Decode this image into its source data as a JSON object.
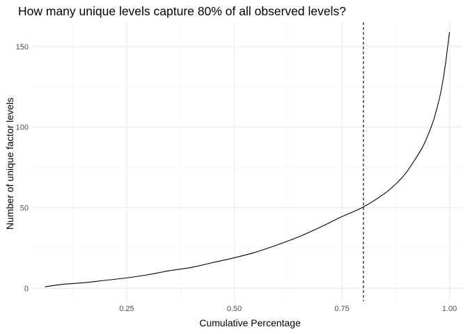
{
  "chart_data": {
    "type": "line",
    "title": "How many unique levels capture 80% of all observed levels?",
    "xlabel": "Cumulative Percentage",
    "ylabel": "Number of unique factor levels",
    "xlim": [
      0.03,
      1.03
    ],
    "ylim": [
      -8,
      165
    ],
    "x_ticks": [
      0.25,
      0.5,
      0.75,
      1.0
    ],
    "x_tick_labels": [
      "0.25",
      "0.50",
      "0.75",
      "1.00"
    ],
    "y_ticks": [
      0,
      50,
      100,
      150
    ],
    "y_tick_labels": [
      "0",
      "50",
      "100",
      "150"
    ],
    "grid": true,
    "reference_line": {
      "x": 0.8,
      "style": "dashed"
    },
    "series": [
      {
        "x": [
          0.06,
          0.1,
          0.15,
          0.2,
          0.25,
          0.3,
          0.35,
          0.4,
          0.45,
          0.5,
          0.55,
          0.6,
          0.65,
          0.7,
          0.75,
          0.8,
          0.85,
          0.88,
          0.9,
          0.92,
          0.94,
          0.96,
          0.97,
          0.98,
          0.99,
          1.0
        ],
        "y": [
          1,
          2.5,
          3.5,
          5,
          6.5,
          8.5,
          11,
          13,
          16,
          19,
          22.5,
          27,
          32,
          38,
          44.5,
          50.5,
          59,
          66,
          72,
          80,
          89,
          102,
          111,
          122,
          138,
          159
        ]
      }
    ]
  }
}
